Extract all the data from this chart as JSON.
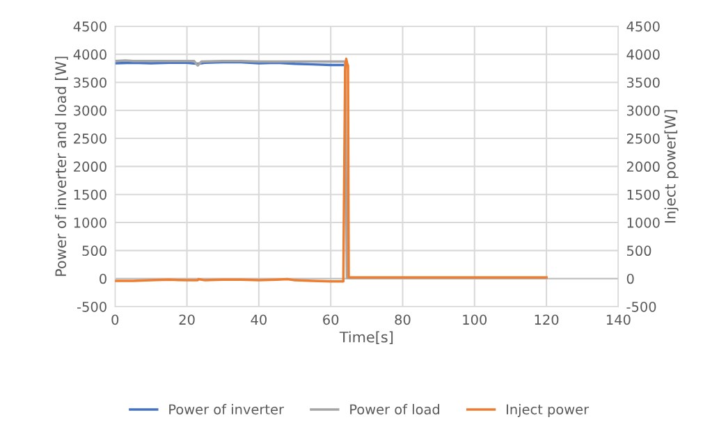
{
  "chart_data": {
    "type": "line",
    "xlabel": "Time[s]",
    "ylabel": "Power of inverter and load [W]",
    "y2label": "Inject power[W]",
    "xlim": [
      0,
      140
    ],
    "xticks": [
      0,
      20,
      40,
      60,
      80,
      100,
      120,
      140
    ],
    "ylim": [
      -500,
      4500
    ],
    "yticks": [
      -500,
      0,
      500,
      1000,
      1500,
      2000,
      2500,
      3000,
      3500,
      4000,
      4500
    ],
    "y2lim": [
      -500,
      4500
    ],
    "y2ticks": [
      -500,
      0,
      500,
      1000,
      1500,
      2000,
      2500,
      3000,
      3500,
      4000,
      4500
    ],
    "grid": true,
    "legend": "bottom",
    "marker": "none",
    "line_style": "solid",
    "ref_lines": [
      {
        "axis": "y",
        "value": 0,
        "color": "#bfbfbf"
      }
    ],
    "series": [
      {
        "name": "Power of inverter",
        "color": "#4472c4",
        "x": [
          0,
          5,
          10,
          15,
          20,
          23,
          25,
          30,
          35,
          40,
          45,
          50,
          55,
          60,
          64
        ],
        "values": [
          3840,
          3850,
          3840,
          3850,
          3850,
          3830,
          3850,
          3860,
          3860,
          3840,
          3850,
          3830,
          3820,
          3810,
          3810
        ]
      },
      {
        "name": "Power of load",
        "color": "#a5a5a5",
        "x": [
          0,
          3,
          5,
          10,
          15,
          20,
          22,
          23,
          24,
          30,
          35,
          40,
          45,
          50,
          55,
          60,
          64,
          64.5,
          80,
          100,
          120
        ],
        "values": [
          3880,
          3890,
          3880,
          3880,
          3880,
          3880,
          3880,
          3800,
          3870,
          3880,
          3880,
          3870,
          3870,
          3870,
          3870,
          3870,
          3870,
          10,
          10,
          10,
          10
        ]
      },
      {
        "name": "Inject power",
        "color": "#ed7d31",
        "axis": "y2",
        "x": [
          0,
          5,
          10,
          15,
          20,
          23,
          23.2,
          25,
          30,
          35,
          40,
          45,
          48,
          50,
          55,
          60,
          63.5,
          64,
          64.3,
          64.6,
          64.8,
          65,
          70,
          80,
          100,
          120
        ],
        "values": [
          -40,
          -40,
          -30,
          -20,
          -30,
          -30,
          -10,
          -30,
          -20,
          -20,
          -30,
          -20,
          -10,
          -30,
          -40,
          -50,
          -50,
          3700,
          3920,
          3830,
          3800,
          20,
          20,
          20,
          20,
          20
        ]
      }
    ]
  }
}
